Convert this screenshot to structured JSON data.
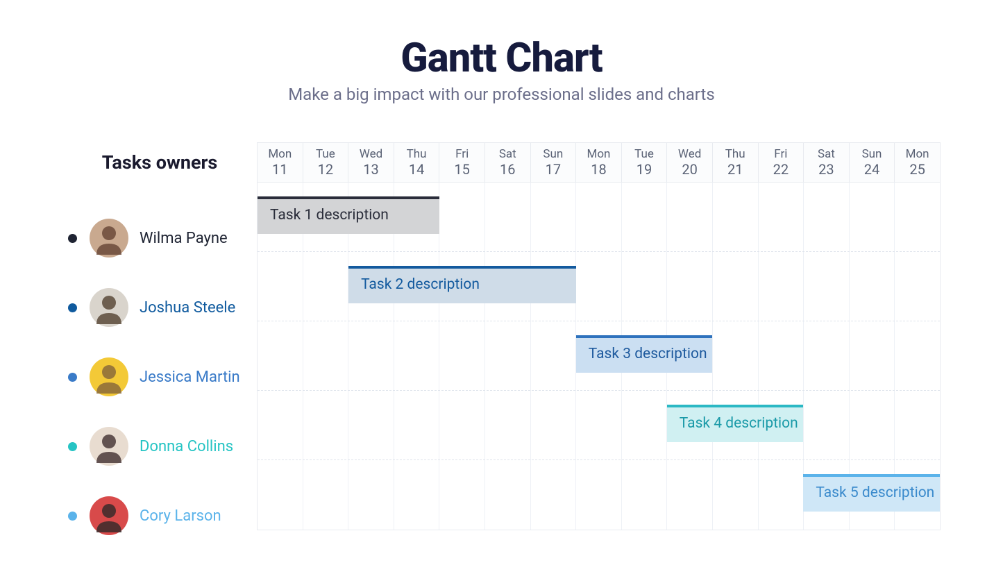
{
  "title": "Gantt Chart",
  "subtitle": "Make a big impact with our professional slides and charts",
  "owners_heading": "Tasks owners",
  "background_color": "#ffffff",
  "title_color": "#161b3d",
  "subtitle_color": "#6b6e8a",
  "grid_border_color": "#e8ebf0",
  "grid_line_color": "#eef1f6",
  "row_dash_color": "#dfe4ec",
  "date_text_color": "#5a6275",
  "num_days": 15,
  "dates": [
    {
      "day": "Mon",
      "num": "11"
    },
    {
      "day": "Tue",
      "num": "12"
    },
    {
      "day": "Wed",
      "num": "13"
    },
    {
      "day": "Thu",
      "num": "14"
    },
    {
      "day": "Fri",
      "num": "15"
    },
    {
      "day": "Sat",
      "num": "16"
    },
    {
      "day": "Sun",
      "num": "17"
    },
    {
      "day": "Mon",
      "num": "18"
    },
    {
      "day": "Tue",
      "num": "19"
    },
    {
      "day": "Wed",
      "num": "20"
    },
    {
      "day": "Thu",
      "num": "21"
    },
    {
      "day": "Fri",
      "num": "22"
    },
    {
      "day": "Sat",
      "num": "23"
    },
    {
      "day": "Sun",
      "num": "24"
    },
    {
      "day": "Mon",
      "num": "25"
    }
  ],
  "owners": [
    {
      "name": "Wilma Payne",
      "dot_color": "#1f2433",
      "name_color": "#1f2433",
      "avatar_bg": "#c9a98f",
      "avatar_accent": "#6b4a3a"
    },
    {
      "name": "Joshua Steele",
      "dot_color": "#0f5a9e",
      "name_color": "#0f5a9e",
      "avatar_bg": "#d9d4cc",
      "avatar_accent": "#5a4a3a"
    },
    {
      "name": "Jessica Martin",
      "dot_color": "#3a7bc8",
      "name_color": "#3a7bc8",
      "avatar_bg": "#f3c937",
      "avatar_accent": "#8a6a3a"
    },
    {
      "name": "Donna Collins",
      "dot_color": "#26c4c4",
      "name_color": "#26c4c4",
      "avatar_bg": "#e8dcd0",
      "avatar_accent": "#4a3a3a"
    },
    {
      "name": "Cory Larson",
      "dot_color": "#5bb3ea",
      "name_color": "#5bb3ea",
      "avatar_bg": "#d84a4a",
      "avatar_accent": "#3a2a2a"
    }
  ],
  "tasks": [
    {
      "label": "Task 1 description",
      "row": 0,
      "start": 0,
      "span": 4,
      "fill_color": "#d3d4d6",
      "stripe_color": "#2a2d3a",
      "text_color": "#2a2d3a"
    },
    {
      "label": "Task 2 description",
      "row": 1,
      "start": 2,
      "span": 5,
      "fill_color": "#cfdce8",
      "stripe_color": "#135a9e",
      "text_color": "#135a9e"
    },
    {
      "label": "Task 3 description",
      "row": 2,
      "start": 7,
      "span": 3,
      "fill_color": "#cbdff2",
      "stripe_color": "#2e72bd",
      "text_color": "#1e5a9e"
    },
    {
      "label": "Task 4 description",
      "row": 3,
      "start": 9,
      "span": 3,
      "fill_color": "#d0f0f2",
      "stripe_color": "#2bb8c4",
      "text_color": "#1a9aa8"
    },
    {
      "label": "Task 5 description",
      "row": 4,
      "start": 12,
      "span": 3,
      "fill_color": "#cfe7f7",
      "stripe_color": "#5bb3ea",
      "text_color": "#3a8acc"
    }
  ]
}
